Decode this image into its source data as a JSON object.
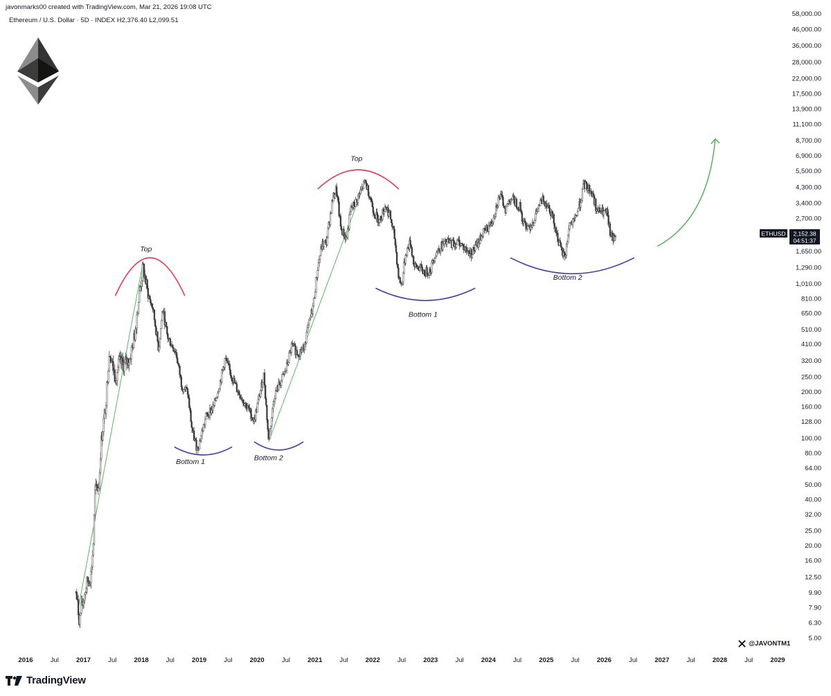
{
  "header": {
    "line1": "javonmarks00 created with TradingView.com, Mar 21, 2026 19:08 UTC",
    "line2": "Ethereum / U.S. Dollar · 5D · INDEX  H2,376.40  L2,099.51"
  },
  "footer": {
    "brand": "TradingView",
    "handle": "@JAVONTM1"
  },
  "icons": [
    "ethereum-logo-icon",
    "tradingview-logo-icon",
    "x-logo-icon",
    "green-arrow-icon"
  ],
  "colors": {
    "candle": "#3d3d3d",
    "trend": "#4caf50",
    "top_arc": "#e53950",
    "bottom_arc": "#4a3aa8",
    "label_bg": "#131722"
  },
  "price_label": {
    "symbol": "ETHUSD",
    "price": "2,152.38",
    "countdown": "04:51:37"
  },
  "chart_data": {
    "type": "candlestick",
    "scale": "log",
    "ylim": [
      4.3,
      60000
    ],
    "xlim": [
      2016.0,
      2029.2
    ],
    "y_ticks": [
      "58,000.00",
      "46,000.00",
      "36,000.00",
      "28,000.00",
      "22,000.00",
      "17,500.00",
      "13,900.00",
      "11,100.00",
      "8,700.00",
      "6,900.00",
      "5,500.00",
      "4,300.00",
      "3,400.00",
      "2,700.00",
      "1,650.00",
      "1,290.00",
      "1,010.00",
      "810.00",
      "650.00",
      "510.00",
      "410.00",
      "320.00",
      "250.00",
      "200.00",
      "160.00",
      "128.00",
      "100.00",
      "80.00",
      "64.00",
      "50.00",
      "40.00",
      "32.00",
      "25.00",
      "20.00",
      "16.00",
      "12.50",
      "9.90",
      "7.90",
      "6.30",
      "5.00"
    ],
    "x_ticks": [
      {
        "label": "2016",
        "t": 2016.0
      },
      {
        "label": "Jul",
        "t": 2016.5
      },
      {
        "label": "2017",
        "t": 2017.0
      },
      {
        "label": "Jul",
        "t": 2017.5
      },
      {
        "label": "2018",
        "t": 2018.0
      },
      {
        "label": "Jul",
        "t": 2018.5
      },
      {
        "label": "2019",
        "t": 2019.0
      },
      {
        "label": "Jul",
        "t": 2019.5
      },
      {
        "label": "2020",
        "t": 2020.0
      },
      {
        "label": "Jul",
        "t": 2020.5
      },
      {
        "label": "2021",
        "t": 2021.0
      },
      {
        "label": "Jul",
        "t": 2021.5
      },
      {
        "label": "2022",
        "t": 2022.0
      },
      {
        "label": "Jul",
        "t": 2022.5
      },
      {
        "label": "2023",
        "t": 2023.0
      },
      {
        "label": "Jul",
        "t": 2023.5
      },
      {
        "label": "2024",
        "t": 2024.0
      },
      {
        "label": "Jul",
        "t": 2024.5
      },
      {
        "label": "2025",
        "t": 2025.0
      },
      {
        "label": "Jul",
        "t": 2025.5
      },
      {
        "label": "2026",
        "t": 2026.0
      },
      {
        "label": "Jul",
        "t": 2026.5
      },
      {
        "label": "2027",
        "t": 2027.0
      },
      {
        "label": "Jul",
        "t": 2027.5
      },
      {
        "label": "2028",
        "t": 2028.0
      },
      {
        "label": "Jul",
        "t": 2028.5
      },
      {
        "label": "2029",
        "t": 2029.0
      }
    ],
    "price_path": [
      [
        2016.87,
        10
      ],
      [
        2016.93,
        6.5
      ],
      [
        2016.97,
        8
      ],
      [
        2017.05,
        11
      ],
      [
        2017.13,
        13
      ],
      [
        2017.17,
        20
      ],
      [
        2017.2,
        45
      ],
      [
        2017.27,
        50
      ],
      [
        2017.3,
        90
      ],
      [
        2017.38,
        160
      ],
      [
        2017.45,
        380
      ],
      [
        2017.5,
        300
      ],
      [
        2017.55,
        250
      ],
      [
        2017.62,
        310
      ],
      [
        2017.7,
        300
      ],
      [
        2017.8,
        330
      ],
      [
        2017.88,
        460
      ],
      [
        2017.97,
        900
      ],
      [
        2018.03,
        1300
      ],
      [
        2018.12,
        850
      ],
      [
        2018.2,
        700
      ],
      [
        2018.3,
        380
      ],
      [
        2018.37,
        700
      ],
      [
        2018.45,
        460
      ],
      [
        2018.6,
        360
      ],
      [
        2018.7,
        220
      ],
      [
        2018.8,
        200
      ],
      [
        2018.88,
        110
      ],
      [
        2018.97,
        85
      ],
      [
        2019.05,
        110
      ],
      [
        2019.12,
        140
      ],
      [
        2019.25,
        160
      ],
      [
        2019.37,
        240
      ],
      [
        2019.45,
        330
      ],
      [
        2019.55,
        260
      ],
      [
        2019.65,
        210
      ],
      [
        2019.75,
        180
      ],
      [
        2019.87,
        150
      ],
      [
        2019.95,
        130
      ],
      [
        2020.03,
        180
      ],
      [
        2020.12,
        260
      ],
      [
        2020.2,
        95
      ],
      [
        2020.3,
        190
      ],
      [
        2020.4,
        230
      ],
      [
        2020.5,
        280
      ],
      [
        2020.6,
        400
      ],
      [
        2020.7,
        360
      ],
      [
        2020.8,
        380
      ],
      [
        2020.9,
        560
      ],
      [
        2020.97,
        730
      ],
      [
        2021.05,
        1300
      ],
      [
        2021.12,
        1800
      ],
      [
        2021.2,
        1900
      ],
      [
        2021.3,
        3500
      ],
      [
        2021.37,
        4200
      ],
      [
        2021.45,
        2300
      ],
      [
        2021.55,
        2000
      ],
      [
        2021.62,
        3100
      ],
      [
        2021.7,
        3400
      ],
      [
        2021.8,
        4100
      ],
      [
        2021.87,
        4700
      ],
      [
        2021.95,
        3800
      ],
      [
        2022.03,
        2900
      ],
      [
        2022.12,
        2600
      ],
      [
        2022.22,
        3300
      ],
      [
        2022.3,
        2800
      ],
      [
        2022.38,
        2000
      ],
      [
        2022.45,
        1100
      ],
      [
        2022.5,
        1000
      ],
      [
        2022.57,
        1600
      ],
      [
        2022.65,
        1900
      ],
      [
        2022.72,
        1300
      ],
      [
        2022.8,
        1300
      ],
      [
        2022.9,
        1200
      ],
      [
        2023.0,
        1250
      ],
      [
        2023.08,
        1600
      ],
      [
        2023.2,
        1800
      ],
      [
        2023.3,
        1900
      ],
      [
        2023.4,
        1850
      ],
      [
        2023.5,
        1900
      ],
      [
        2023.6,
        1700
      ],
      [
        2023.7,
        1600
      ],
      [
        2023.8,
        1800
      ],
      [
        2023.88,
        2100
      ],
      [
        2023.97,
        2300
      ],
      [
        2024.05,
        2500
      ],
      [
        2024.15,
        3400
      ],
      [
        2024.2,
        3800
      ],
      [
        2024.3,
        3100
      ],
      [
        2024.38,
        3700
      ],
      [
        2024.45,
        3500
      ],
      [
        2024.55,
        3200
      ],
      [
        2024.6,
        2500
      ],
      [
        2024.7,
        2400
      ],
      [
        2024.78,
        2600
      ],
      [
        2024.88,
        3300
      ],
      [
        2024.95,
        3600
      ],
      [
        2025.05,
        3200
      ],
      [
        2025.12,
        2700
      ],
      [
        2025.2,
        2000
      ],
      [
        2025.27,
        1600
      ],
      [
        2025.33,
        1550
      ],
      [
        2025.4,
        2500
      ],
      [
        2025.47,
        2500
      ],
      [
        2025.55,
        3100
      ],
      [
        2025.6,
        3600
      ],
      [
        2025.65,
        4500
      ],
      [
        2025.72,
        4300
      ],
      [
        2025.8,
        3900
      ],
      [
        2025.88,
        3000
      ],
      [
        2025.95,
        3000
      ],
      [
        2026.05,
        2900
      ],
      [
        2026.1,
        2200
      ],
      [
        2026.15,
        1950
      ],
      [
        2026.2,
        2150
      ]
    ],
    "annotations": [
      {
        "text": "Top",
        "t": 2018.08,
        "v": 1650,
        "kind": "top-arc",
        "arc": [
          2017.55,
          2018.75,
          850,
          1500
        ]
      },
      {
        "text": "Bottom 1",
        "t": 2018.85,
        "v": 68,
        "kind": "bottom-arc",
        "arc": [
          2018.57,
          2019.57,
          88,
          78
        ]
      },
      {
        "text": "Bottom 2",
        "t": 2020.2,
        "v": 72,
        "kind": "bottom-arc",
        "arc": [
          2019.95,
          2020.8,
          95,
          84
        ]
      },
      {
        "text": "Top",
        "t": 2021.72,
        "v": 6400,
        "kind": "top-arc",
        "arc": [
          2021.05,
          2022.45,
          4200,
          5600
        ]
      },
      {
        "text": "Bottom 1",
        "t": 2022.87,
        "v": 620,
        "kind": "bottom-arc",
        "arc": [
          2022.05,
          2023.77,
          950,
          790
        ]
      },
      {
        "text": "Bottom 2",
        "t": 2025.37,
        "v": 1080,
        "kind": "bottom-arc",
        "arc": [
          2024.38,
          2026.52,
          1500,
          1180
        ]
      }
    ],
    "trendlines": [
      [
        [
          2016.92,
          8.2
        ],
        [
          2018.03,
          1400
        ]
      ],
      [
        [
          2020.2,
          95
        ],
        [
          2021.87,
          4700
        ]
      ]
    ],
    "projection": {
      "from": [
        2026.92,
        1780
      ],
      "to": [
        2027.92,
        8900
      ]
    }
  }
}
